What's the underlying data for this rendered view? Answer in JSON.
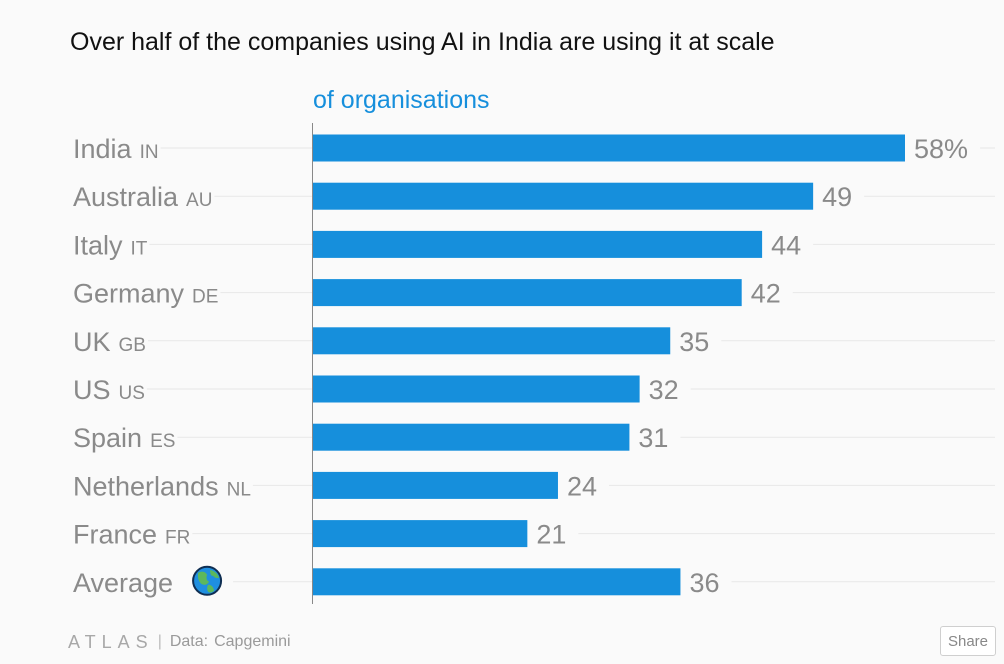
{
  "chart_data": {
    "type": "bar",
    "orientation": "horizontal",
    "title": "Over half of the companies using AI in India are using it at scale",
    "subtitle": "of organisations",
    "categories": [
      "India",
      "Australia",
      "Italy",
      "Germany",
      "UK",
      "US",
      "Spain",
      "Netherlands",
      "France",
      "Average"
    ],
    "country_codes": [
      "IN",
      "AU",
      "IT",
      "DE",
      "GB",
      "US",
      "ES",
      "NL",
      "FR",
      ""
    ],
    "values": [
      58,
      49,
      44,
      42,
      35,
      32,
      31,
      24,
      21,
      36
    ],
    "value_labels": [
      "58%",
      "49",
      "44",
      "42",
      "35",
      "32",
      "31",
      "24",
      "21",
      "36"
    ],
    "xlim": [
      0,
      58
    ],
    "grid": true,
    "bar_color": "#168fdc",
    "label_color": "#8a8a8a",
    "gridline_color": "#e7e7e7",
    "average_icon": "globe-icon"
  },
  "footer": {
    "brand": "ATLAS",
    "separator": "|",
    "source_label": "Data:",
    "source_name": "Capgemini"
  },
  "share": {
    "label": "Share"
  }
}
